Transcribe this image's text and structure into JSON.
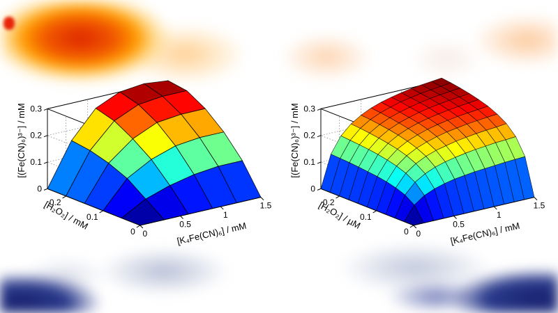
{
  "decor": {
    "top_band": {
      "colors": [
        "#dd2500",
        "#f25a00",
        "#ff9d00",
        "#ffe2a0"
      ],
      "dot_color": "#e8250a"
    },
    "bottom_band": {
      "navy": "#18226e",
      "blue_gray": "#8d9cc5",
      "white_glow": "#ffffff"
    }
  },
  "chart_data": [
    {
      "type": "surface",
      "colormap": "jet",
      "view": {
        "azimuth": -37.5,
        "elevation": 30
      },
      "grid": true,
      "xlabel": "[K₄Fe(CN)₆] / mM",
      "ylabel": "[H₂O₂] / mM",
      "zlabel": "[(Fe(CN)₆)³⁻] / mM",
      "xlim": [
        0,
        1.5
      ],
      "ylim": [
        0,
        0.25
      ],
      "zlim": [
        0,
        0.3
      ],
      "xticks": [
        0,
        0.5,
        1,
        1.5
      ],
      "yticks": [
        0,
        0.1,
        0.2
      ],
      "zticks": [
        0,
        0.1,
        0.2,
        0.3
      ],
      "x": [
        0,
        0.3,
        0.6,
        0.9,
        1.2,
        1.5
      ],
      "y": [
        0,
        0.05,
        0.1,
        0.15,
        0.2,
        0.25
      ],
      "z": [
        [
          0,
          0,
          0,
          0,
          0,
          0
        ],
        [
          0,
          0.05,
          0.08,
          0.1,
          0.11,
          0.11
        ],
        [
          0,
          0.1,
          0.15,
          0.18,
          0.19,
          0.19
        ],
        [
          0,
          0.13,
          0.2,
          0.24,
          0.25,
          0.25
        ],
        [
          0,
          0.15,
          0.24,
          0.28,
          0.29,
          0.29
        ],
        [
          0,
          0.16,
          0.26,
          0.3,
          0.31,
          0.3
        ]
      ]
    },
    {
      "type": "surface",
      "colormap": "jet",
      "view": {
        "azimuth": -37.5,
        "elevation": 30
      },
      "grid": true,
      "xlabel": "[K₄Fe(CN)₆] / mM",
      "ylabel": "[H₂O₂] / µM",
      "zlabel": "[(Fe(CN)₆)³⁻] / mM",
      "xlim": [
        0,
        1.5
      ],
      "ylim": [
        0,
        0.25
      ],
      "zlim": [
        0,
        0.3
      ],
      "xticks": [
        0,
        0.5,
        1,
        1.5
      ],
      "yticks": [
        0,
        0.1,
        0.2
      ],
      "zticks": [
        0,
        0.1,
        0.2,
        0.3
      ],
      "x": [
        0,
        0.125,
        0.25,
        0.375,
        0.5,
        0.625,
        0.75,
        0.875,
        1,
        1.125,
        1.25,
        1.375,
        1.5
      ],
      "y": [
        0,
        0.025,
        0.05,
        0.075,
        0.1,
        0.125,
        0.15,
        0.175,
        0.2,
        0.225,
        0.25
      ],
      "z": [
        [
          0,
          0,
          0,
          0,
          0,
          0,
          0,
          0,
          0,
          0,
          0,
          0,
          0
        ],
        [
          0,
          0.054,
          0.081,
          0.097,
          0.108,
          0.116,
          0.121,
          0.126,
          0.129,
          0.132,
          0.135,
          0.137,
          0.139
        ],
        [
          0,
          0.078,
          0.117,
          0.14,
          0.156,
          0.167,
          0.175,
          0.182,
          0.187,
          0.191,
          0.195,
          0.197,
          0.2
        ],
        [
          0,
          0.091,
          0.137,
          0.164,
          0.183,
          0.196,
          0.205,
          0.213,
          0.219,
          0.224,
          0.228,
          0.231,
          0.235
        ],
        [
          0,
          0.1,
          0.15,
          0.18,
          0.2,
          0.214,
          0.225,
          0.234,
          0.24,
          0.246,
          0.25,
          0.254,
          0.257
        ],
        [
          0,
          0.106,
          0.159,
          0.191,
          0.212,
          0.227,
          0.239,
          0.248,
          0.255,
          0.261,
          0.265,
          0.269,
          0.273
        ],
        [
          0,
          0.11,
          0.166,
          0.199,
          0.221,
          0.237,
          0.249,
          0.258,
          0.265,
          0.271,
          0.276,
          0.28,
          0.284
        ],
        [
          0,
          0.114,
          0.171,
          0.205,
          0.228,
          0.244,
          0.256,
          0.266,
          0.274,
          0.28,
          0.285,
          0.289,
          0.293
        ],
        [
          0,
          0.117,
          0.175,
          0.21,
          0.233,
          0.25,
          0.262,
          0.272,
          0.28,
          0.287,
          0.292,
          0.296,
          0.3
        ],
        [
          0,
          0.119,
          0.178,
          0.214,
          0.238,
          0.255,
          0.267,
          0.278,
          0.285,
          0.292,
          0.297,
          0.301,
          0.306
        ],
        [
          0,
          0.121,
          0.181,
          0.217,
          0.241,
          0.259,
          0.272,
          0.282,
          0.29,
          0.297,
          0.302,
          0.306,
          0.31
        ]
      ]
    }
  ]
}
